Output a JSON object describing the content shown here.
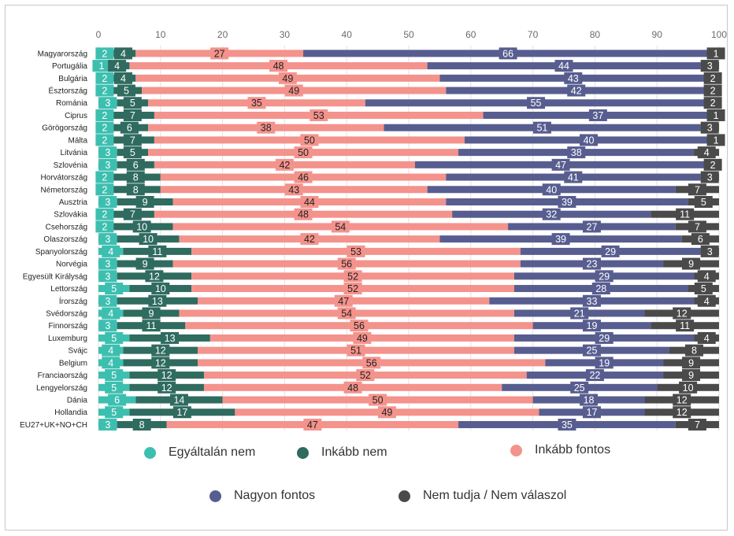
{
  "chart_data": {
    "type": "bar",
    "orientation": "horizontal",
    "stacked": true,
    "title": "",
    "xlabel": "",
    "ylabel": "",
    "xlim": [
      0,
      100
    ],
    "x_ticks": [
      "0",
      "10",
      "20",
      "30",
      "40",
      "50",
      "60",
      "70",
      "80",
      "90",
      "100"
    ],
    "grid": true,
    "legend_position": "bottom",
    "categories": [
      "Magyarország",
      "Portugália",
      "Bulgária",
      "Észtország",
      "Románia",
      "Ciprus",
      "Görögország",
      "Málta",
      "Litvánia",
      "Szlovénia",
      "Horvátország",
      "Németország",
      "Ausztria",
      "Szlovákia",
      "Csehország",
      "Olaszország",
      "Spanyolország",
      "Norvégia",
      "Egyesült Királyság",
      "Lettország",
      "Írország",
      "Svédország",
      "Finnország",
      "Luxemburg",
      "Svájc",
      "Belgium",
      "Franciaország",
      "Lengyelország",
      "Dánia",
      "Hollandia",
      "EU27+UK+NO+CH"
    ],
    "series": [
      {
        "name": "Egyáltalán nem",
        "color": "#3dbfb0",
        "values": [
          2,
          1,
          2,
          2,
          3,
          2,
          2,
          2,
          3,
          3,
          2,
          2,
          3,
          2,
          2,
          3,
          4,
          3,
          3,
          5,
          3,
          4,
          3,
          5,
          4,
          4,
          5,
          5,
          6,
          5,
          3
        ]
      },
      {
        "name": "Inkább nem",
        "color": "#2f6b5f",
        "values": [
          4,
          4,
          4,
          5,
          5,
          7,
          6,
          7,
          5,
          6,
          8,
          8,
          9,
          7,
          10,
          10,
          11,
          9,
          12,
          10,
          13,
          9,
          11,
          13,
          12,
          12,
          12,
          12,
          14,
          17,
          8
        ]
      },
      {
        "name": "Inkább fontos",
        "color": "#f4928c",
        "values": [
          27,
          48,
          49,
          49,
          35,
          53,
          38,
          50,
          50,
          42,
          46,
          43,
          44,
          48,
          54,
          42,
          53,
          56,
          52,
          52,
          47,
          54,
          56,
          49,
          51,
          56,
          52,
          48,
          50,
          49,
          47
        ]
      },
      {
        "name": "Nagyon fontos",
        "color": "#575d8f",
        "values": [
          66,
          44,
          43,
          42,
          55,
          37,
          51,
          40,
          38,
          47,
          41,
          40,
          39,
          32,
          27,
          39,
          29,
          23,
          29,
          28,
          33,
          21,
          19,
          29,
          25,
          19,
          22,
          25,
          18,
          17,
          35
        ]
      },
      {
        "name": "Nem tudja / Nem válaszol",
        "color": "#4a4a4a",
        "values": [
          1,
          3,
          2,
          2,
          2,
          1,
          3,
          1,
          4,
          2,
          3,
          7,
          5,
          11,
          7,
          6,
          3,
          9,
          4,
          5,
          4,
          12,
          11,
          4,
          8,
          9,
          9,
          10,
          12,
          12,
          7
        ]
      }
    ]
  }
}
